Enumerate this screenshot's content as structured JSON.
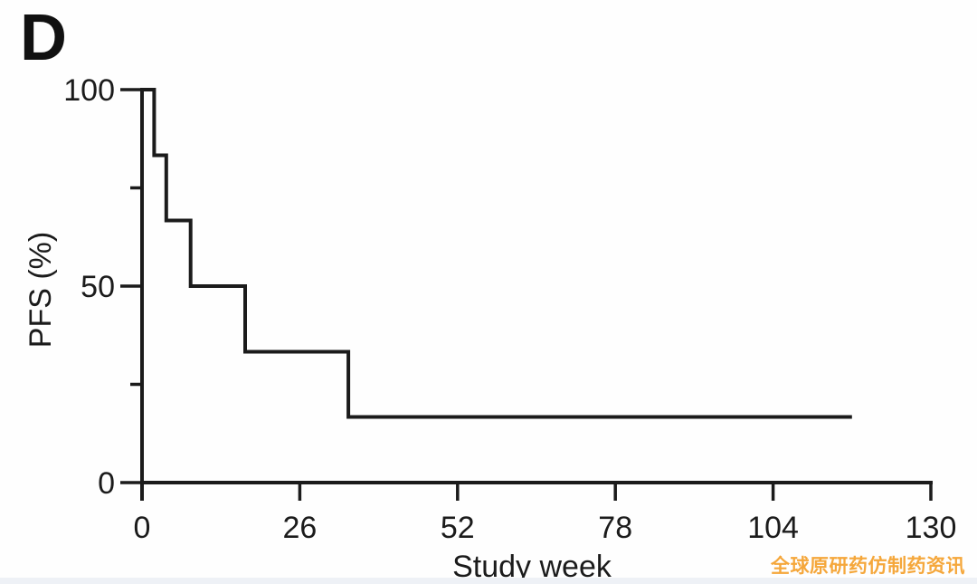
{
  "panel_label": "D",
  "watermark": {
    "text": "全球原研药仿制药资讯",
    "color": "#f5a73b"
  },
  "chart_data": {
    "type": "line",
    "subtype": "kaplan-meier-step",
    "title": "",
    "xlabel": "Study week",
    "ylabel": "PFS (%)",
    "xlim": [
      0,
      130
    ],
    "ylim": [
      0,
      100
    ],
    "x_ticks": [
      0,
      26,
      52,
      78,
      104,
      130
    ],
    "y_ticks_major": [
      0,
      50,
      100
    ],
    "y_ticks_minor": [
      25,
      75
    ],
    "grid": false,
    "legend": null,
    "axis_color": "#1b1b1b",
    "series": [
      {
        "name": "PFS",
        "color": "#1b1b1b",
        "points": [
          [
            0,
            100
          ],
          [
            2,
            100
          ],
          [
            2,
            83.3
          ],
          [
            4,
            83.3
          ],
          [
            4,
            66.7
          ],
          [
            8,
            66.7
          ],
          [
            8,
            50
          ],
          [
            17,
            50
          ],
          [
            17,
            33.3
          ],
          [
            34,
            33.3
          ],
          [
            34,
            16.7
          ],
          [
            117,
            16.7
          ]
        ]
      }
    ]
  }
}
